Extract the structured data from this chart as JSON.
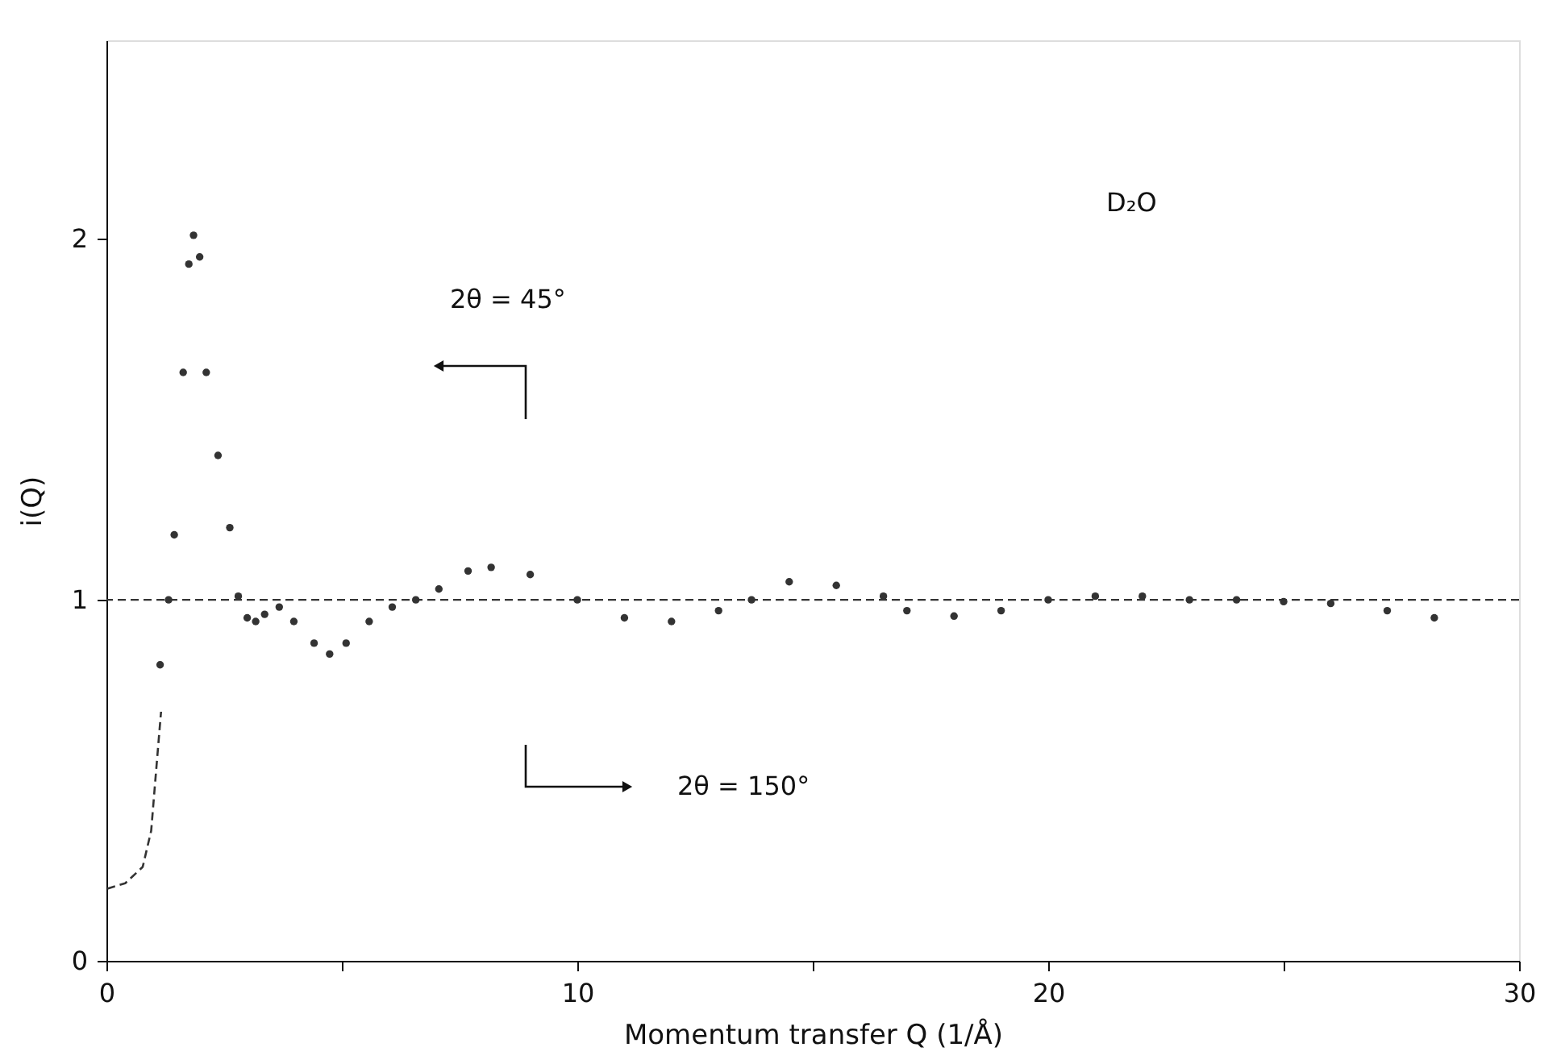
{
  "chart_data": {
    "type": "scatter",
    "xlabel": "Momentum transfer  Q (1/Å)",
    "ylabel": "i(Q)",
    "xlim": [
      0,
      30
    ],
    "ylim": [
      0,
      2.55
    ],
    "xticks": [
      0,
      {
        "value": 5,
        "label": null
      },
      10,
      {
        "value": 15,
        "label": null
      },
      20,
      {
        "value": 25,
        "label": null
      },
      30
    ],
    "yticks": [
      0,
      1,
      2
    ],
    "grid": false,
    "series": [
      {
        "type": "line",
        "line_style": "dashed",
        "color": "#333333",
        "x": [
          0.02,
          0.4,
          0.77,
          0.95,
          1.07,
          1.16
        ],
        "values": [
          0.2,
          0.215,
          0.26,
          0.36,
          0.55,
          0.69
        ]
      },
      {
        "marker": "circle",
        "color": "#333333",
        "x": [
          1.14,
          1.32,
          1.44,
          1.63,
          1.75,
          1.85,
          1.98,
          2.12,
          2.37,
          2.62,
          2.8,
          2.99,
          3.17,
          3.36,
          3.67,
          3.98,
          4.41,
          4.74,
          5.09,
          5.58,
          6.07,
          6.57,
          7.06,
          7.68,
          8.17,
          9.0,
          10.0,
          11.0,
          12.0,
          13.0,
          13.7,
          14.5,
          15.5,
          16.5,
          17.0,
          18.0,
          19.0,
          20.0,
          21.0,
          22.0,
          23.0,
          24.0,
          25.0,
          26.0,
          27.2,
          28.2
        ],
        "values": [
          0.82,
          1.0,
          1.18,
          1.63,
          1.93,
          2.01,
          1.95,
          1.63,
          1.4,
          1.2,
          1.01,
          0.95,
          0.94,
          0.96,
          0.98,
          0.94,
          0.88,
          0.85,
          0.88,
          0.94,
          0.98,
          1.0,
          1.03,
          1.08,
          1.09,
          1.07,
          1.0,
          0.95,
          0.94,
          0.97,
          1.0,
          1.05,
          1.04,
          1.01,
          0.97,
          0.955,
          0.97,
          1.0,
          1.01,
          1.01,
          1.0,
          1.0,
          0.995,
          0.99,
          0.97,
          0.95
        ]
      }
    ],
    "ref_lines": [
      {
        "axis": "y",
        "value": 1,
        "line_style": "dashed",
        "color": "#333333"
      }
    ],
    "annotations": [
      "2θ = 45°",
      "2θ = 150°",
      "D₂O"
    ]
  }
}
